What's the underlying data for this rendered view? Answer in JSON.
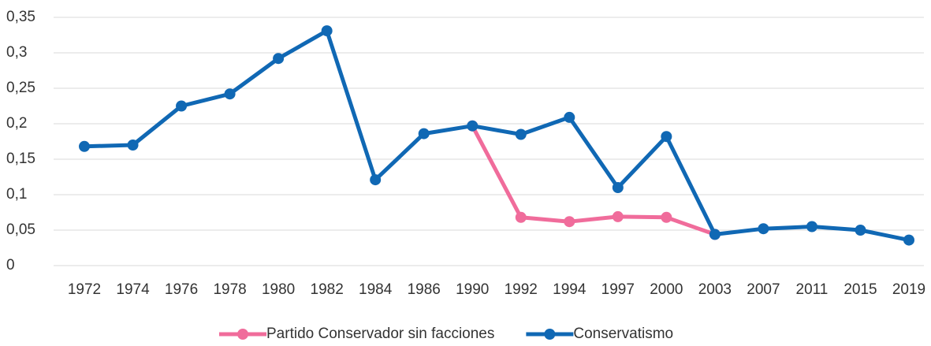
{
  "chart_data": {
    "type": "line",
    "categories": [
      "1972",
      "1974",
      "1976",
      "1978",
      "1980",
      "1982",
      "1984",
      "1986",
      "1990",
      "1992",
      "1994",
      "1997",
      "2000",
      "2003",
      "2007",
      "2011",
      "2015",
      "2019"
    ],
    "series": [
      {
        "name": "Partido Conservador sin facciones",
        "color": "#f06c9b",
        "values": [
          null,
          null,
          null,
          null,
          null,
          null,
          null,
          null,
          0.197,
          0.068,
          0.062,
          0.069,
          0.068,
          0.044,
          null,
          null,
          null,
          null
        ]
      },
      {
        "name": "Conservatismo",
        "color": "#1068b4",
        "values": [
          0.168,
          0.17,
          0.225,
          0.242,
          0.292,
          0.331,
          0.121,
          0.186,
          0.197,
          0.185,
          0.209,
          0.11,
          0.182,
          0.044,
          0.052,
          0.055,
          0.05,
          0.036
        ]
      }
    ],
    "ylim": [
      0,
      0.35
    ],
    "yticks": [
      0,
      {
        "value": 0.05,
        "label": "0,05"
      },
      {
        "value": 0.1,
        "label": "0,1"
      },
      {
        "value": 0.15,
        "label": "0,15"
      },
      {
        "value": 0.2,
        "label": "0,2"
      },
      {
        "value": 0.25,
        "label": "0,25"
      },
      {
        "value": 0.3,
        "label": "0,3"
      },
      {
        "value": 0.35,
        "label": "0,35"
      }
    ],
    "grid": true,
    "legend": "bottom"
  }
}
